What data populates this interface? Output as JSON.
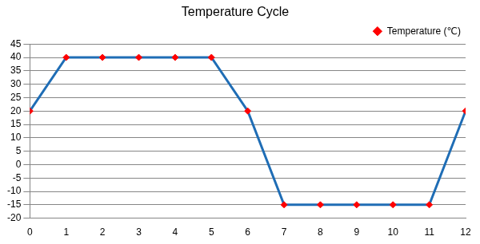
{
  "chart_data": {
    "type": "line",
    "title": "Temperature Cycle",
    "x": [
      0,
      1,
      2,
      3,
      4,
      5,
      6,
      7,
      8,
      9,
      10,
      11,
      12
    ],
    "series": [
      {
        "name": "Temperature (℃)",
        "color": "#1f6db5",
        "marker": "diamond",
        "values": [
          20,
          40,
          40,
          40,
          40,
          40,
          20,
          -15,
          -15,
          -15,
          -15,
          -15,
          20
        ]
      }
    ],
    "xlim": [
      0,
      12
    ],
    "xticks": [
      0,
      1,
      2,
      3,
      4,
      5,
      6,
      7,
      8,
      9,
      10,
      11,
      12
    ],
    "ylim": [
      -20,
      45
    ],
    "yticks": [
      -20,
      -15,
      -10,
      -5,
      0,
      5,
      10,
      15,
      20,
      25,
      30,
      35,
      40,
      45
    ],
    "grid": true,
    "legend": "upper right"
  }
}
